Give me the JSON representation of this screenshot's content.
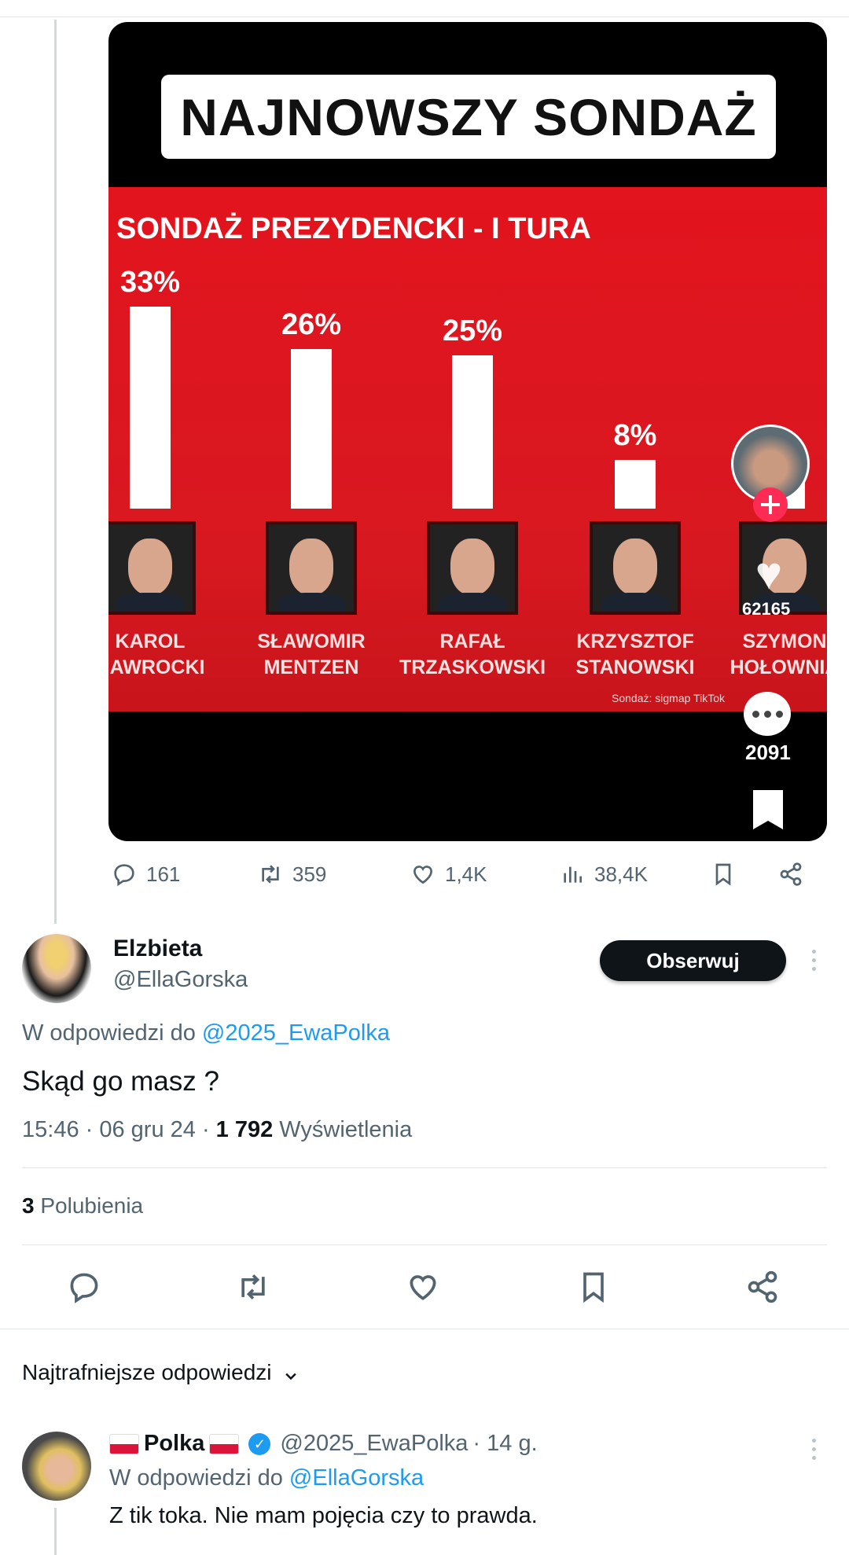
{
  "parent_tweet": {
    "media": {
      "headline": "NAJNOWSZY SONDAŻ",
      "subtitle": "SONDAŻ PREZYDENCKI - I TURA",
      "candidates": [
        {
          "percent": "33%",
          "value": 33,
          "first": "KAROL",
          "last": "NAWROCKI"
        },
        {
          "percent": "26%",
          "value": 26,
          "first": "SŁAWOMIR",
          "last": "MENTZEN"
        },
        {
          "percent": "25%",
          "value": 25,
          "first": "RAFAŁ",
          "last": "TRZASKOWSKI"
        },
        {
          "percent": "8%",
          "value": 8,
          "first": "KRZYSZTOF",
          "last": "STANOWSKI"
        },
        {
          "percent": "",
          "value": 6,
          "first": "SZYMON",
          "last": "HOŁOWNIA"
        }
      ],
      "credit": "Sondaż: sigmap",
      "credit_tiktok": "TikTok",
      "tiktok_likes": "62165",
      "tiktok_comments": "2091",
      "background_color": "#e2141e"
    },
    "actions": {
      "replies": "161",
      "reposts": "359",
      "likes": "1,4K",
      "views": "38,4K"
    }
  },
  "tweet": {
    "display_name": "Elzbieta",
    "handle": "@EllaGorska",
    "follow_label": "Obserwuj",
    "reply_prefix": "W odpowiedzi do",
    "reply_to": "@2025_EwaPolka",
    "text": "Skąd go masz ?",
    "time": "15:46 · 06 gru 24 · ",
    "views_count": "1 792",
    "views_label": " Wyświetlenia",
    "likes_count": "3",
    "likes_label": " Polubienia"
  },
  "replies_section": {
    "sort_label": "Najtrafniejsze odpowiedzi",
    "replies": [
      {
        "display_name": "Polka",
        "verified": true,
        "handle": "@2025_EwaPolka",
        "age": " · 14 g.",
        "reply_prefix": "W odpowiedzi do",
        "reply_to": "@EllaGorska",
        "text": "Z tik toka. Nie mam pojęcia czy to prawda."
      }
    ]
  }
}
